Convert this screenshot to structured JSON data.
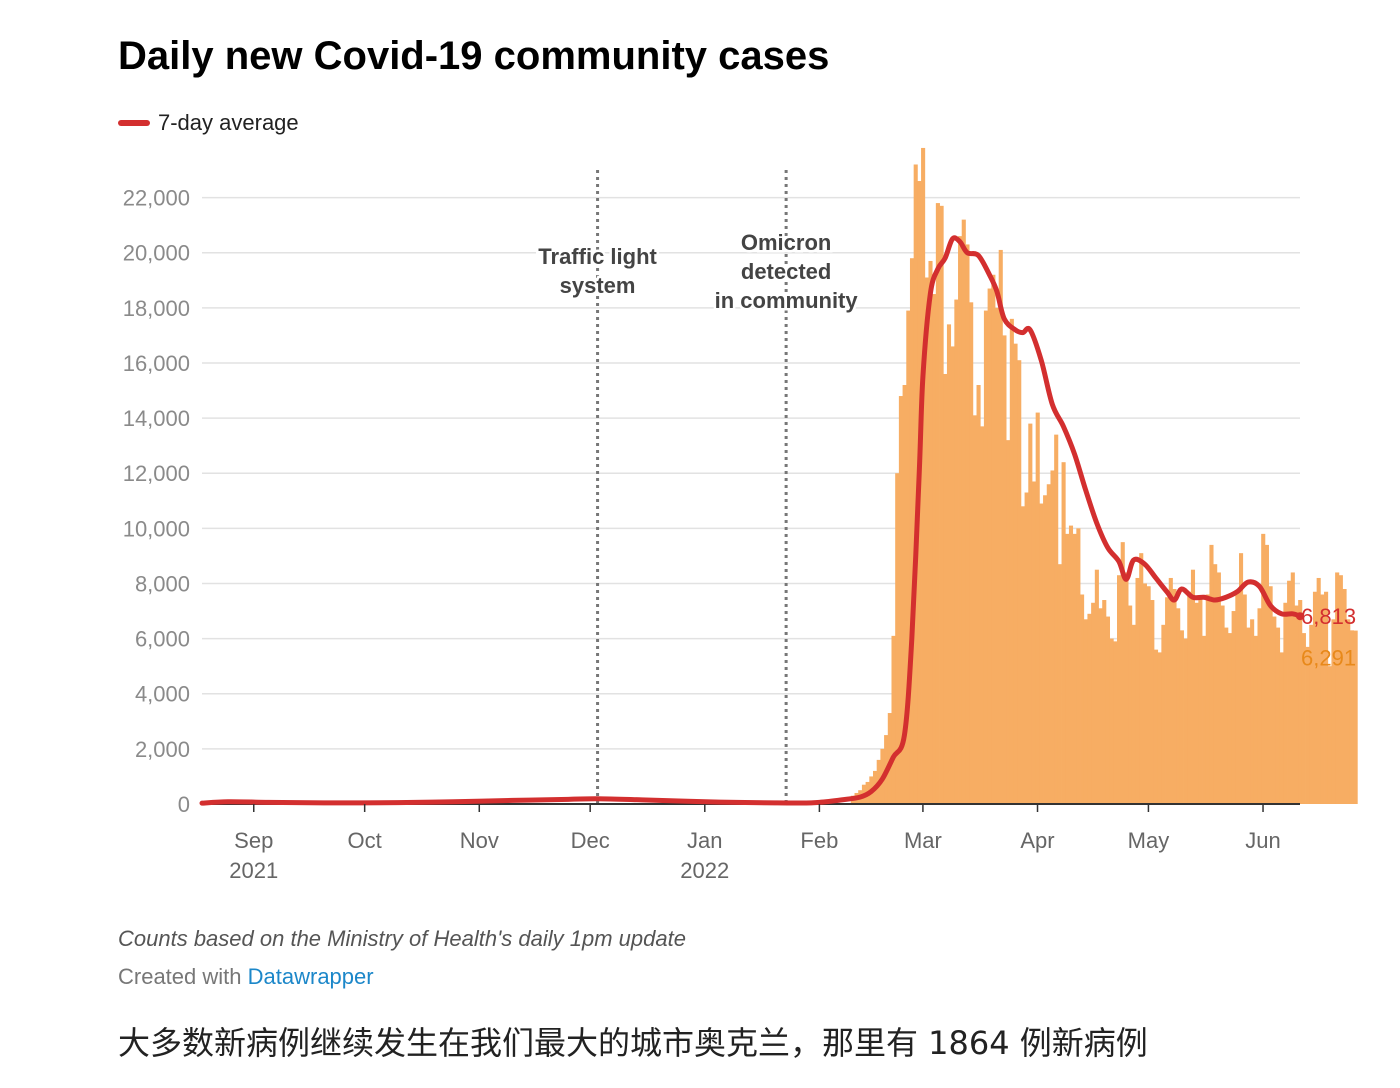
{
  "chart_data": {
    "type": "bar",
    "title": "Daily new Covid-19 community cases",
    "series_legend": "7-day average",
    "colors": {
      "bars": "#f7ad63",
      "line": "#d32f2f",
      "bar_label": "#e8891a",
      "grid": "#e2e2e2"
    },
    "ylim": [
      0,
      23000
    ],
    "yticks": [
      "0",
      "2,000",
      "4,000",
      "6,000",
      "8,000",
      "10,000",
      "12,000",
      "14,000",
      "16,000",
      "18,000",
      "20,000",
      "22,000"
    ],
    "ytick_values": [
      0,
      2000,
      4000,
      6000,
      8000,
      10000,
      12000,
      14000,
      16000,
      18000,
      20000,
      22000
    ],
    "xlim": [
      "2021-08-18",
      "2022-06-11"
    ],
    "xticks": [
      {
        "date": "2021-09-01",
        "label": "Sep",
        "year": "2021"
      },
      {
        "date": "2021-10-01",
        "label": "Oct",
        "year": ""
      },
      {
        "date": "2021-11-01",
        "label": "Nov",
        "year": ""
      },
      {
        "date": "2021-12-01",
        "label": "Dec",
        "year": ""
      },
      {
        "date": "2022-01-01",
        "label": "Jan",
        "year": "2022"
      },
      {
        "date": "2022-02-01",
        "label": "Feb",
        "year": ""
      },
      {
        "date": "2022-03-01",
        "label": "Mar",
        "year": ""
      },
      {
        "date": "2022-04-01",
        "label": "Apr",
        "year": ""
      },
      {
        "date": "2022-05-01",
        "label": "May",
        "year": ""
      },
      {
        "date": "2022-06-01",
        "label": "Jun",
        "year": ""
      }
    ],
    "annotations": [
      {
        "date": "2021-12-03",
        "lines": [
          "Traffic light",
          "system"
        ]
      },
      {
        "date": "2022-01-23",
        "lines": [
          "Omicron",
          "detected",
          "in community"
        ]
      }
    ],
    "daily_start": "2022-02-10",
    "daily_cases": [
      300,
      400,
      500,
      700,
      800,
      1000,
      1200,
      1600,
      2000,
      2500,
      3300,
      6100,
      12000,
      14800,
      15200,
      17900,
      19800,
      23200,
      22600,
      23800,
      19100,
      19700,
      18500,
      21800,
      21700,
      15600,
      17400,
      16600,
      18300,
      20600,
      21200,
      20300,
      18200,
      14100,
      15200,
      13700,
      17900,
      18700,
      19200,
      18000,
      20100,
      17000,
      13200,
      17600,
      16700,
      16100,
      10800,
      11300,
      13800,
      11700,
      14200,
      10900,
      11200,
      11600,
      12100,
      13400,
      8700,
      12400,
      9800,
      10100,
      9800,
      10000,
      7600,
      6700,
      6900,
      7300,
      8500,
      7100,
      7400,
      6800,
      6000,
      5900,
      8300,
      9500,
      8400,
      7200,
      6500,
      8200,
      9100,
      8000,
      7900,
      7400,
      5600,
      5500,
      6500,
      7500,
      8200,
      7800,
      7100,
      6300,
      6000,
      7700,
      8500,
      7300,
      7500,
      6100,
      7600,
      9400,
      8700,
      8400,
      7200,
      6400,
      6200,
      7000,
      7700,
      9100,
      7600,
      6400,
      6700,
      6100,
      7100,
      9800,
      9400,
      7900,
      6800,
      6400,
      5500,
      7300,
      8100,
      8400,
      7200,
      7400,
      6200,
      5700,
      6500,
      7700,
      8200,
      7600,
      7700,
      5000,
      6700,
      8400,
      8300,
      7800,
      6700,
      6300,
      6291
    ],
    "avg_points": [
      [
        "2021-08-18",
        30
      ],
      [
        "2021-08-25",
        80
      ],
      [
        "2021-09-05",
        60
      ],
      [
        "2021-09-20",
        40
      ],
      [
        "2021-10-10",
        50
      ],
      [
        "2021-10-25",
        80
      ],
      [
        "2021-11-10",
        130
      ],
      [
        "2021-11-25",
        170
      ],
      [
        "2021-12-03",
        190
      ],
      [
        "2021-12-15",
        150
      ],
      [
        "2021-12-25",
        110
      ],
      [
        "2022-01-05",
        70
      ],
      [
        "2022-01-20",
        40
      ],
      [
        "2022-01-27",
        35
      ],
      [
        "2022-02-01",
        60
      ],
      [
        "2022-02-07",
        150
      ],
      [
        "2022-02-12",
        250
      ],
      [
        "2022-02-15",
        450
      ],
      [
        "2022-02-18",
        900
      ],
      [
        "2022-02-21",
        1700
      ],
      [
        "2022-02-24",
        2500
      ],
      [
        "2022-02-26",
        6000
      ],
      [
        "2022-02-28",
        12000
      ],
      [
        "2022-03-01",
        15500
      ],
      [
        "2022-03-03",
        18500
      ],
      [
        "2022-03-05",
        19400
      ],
      [
        "2022-03-07",
        19800
      ],
      [
        "2022-03-09",
        20500
      ],
      [
        "2022-03-11",
        20400
      ],
      [
        "2022-03-13",
        20000
      ],
      [
        "2022-03-16",
        19900
      ],
      [
        "2022-03-19",
        19200
      ],
      [
        "2022-03-21",
        18600
      ],
      [
        "2022-03-23",
        17600
      ],
      [
        "2022-03-26",
        17200
      ],
      [
        "2022-03-28",
        17100
      ],
      [
        "2022-03-30",
        17200
      ],
      [
        "2022-04-02",
        16100
      ],
      [
        "2022-04-05",
        14500
      ],
      [
        "2022-04-08",
        13700
      ],
      [
        "2022-04-11",
        12700
      ],
      [
        "2022-04-14",
        11400
      ],
      [
        "2022-04-17",
        10200
      ],
      [
        "2022-04-20",
        9300
      ],
      [
        "2022-04-23",
        8800
      ],
      [
        "2022-04-25",
        8150
      ],
      [
        "2022-04-27",
        8850
      ],
      [
        "2022-04-30",
        8700
      ],
      [
        "2022-05-03",
        8200
      ],
      [
        "2022-05-06",
        7700
      ],
      [
        "2022-05-08",
        7400
      ],
      [
        "2022-05-10",
        7800
      ],
      [
        "2022-05-13",
        7500
      ],
      [
        "2022-05-16",
        7500
      ],
      [
        "2022-05-19",
        7400
      ],
      [
        "2022-05-22",
        7500
      ],
      [
        "2022-05-25",
        7700
      ],
      [
        "2022-05-28",
        8050
      ],
      [
        "2022-05-31",
        7900
      ],
      [
        "2022-06-03",
        7200
      ],
      [
        "2022-06-06",
        6900
      ],
      [
        "2022-06-09",
        6900
      ],
      [
        "2022-06-11",
        6813
      ]
    ],
    "end_labels": {
      "avg": "6,813",
      "daily": "6,291"
    }
  },
  "notes": "Counts based on the Ministry of Health's daily 1pm update",
  "credit_prefix": "Created with",
  "credit_link": "Datawrapper",
  "caption": "大多数新病例继续发生在我们最大的城市奥克兰，那里有 1864 例新病例"
}
